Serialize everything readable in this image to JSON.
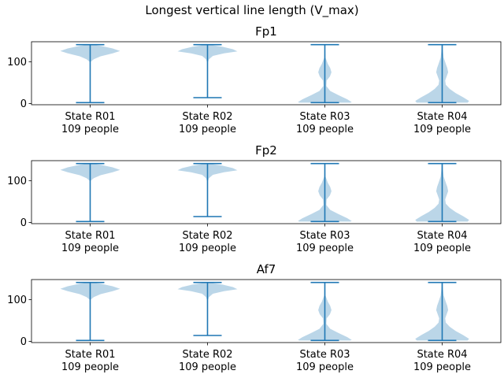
{
  "chart_data": {
    "type": "violin",
    "title": "Longest vertical line length (V_max)",
    "categories": [
      {
        "state": "State R01",
        "people": "109 people"
      },
      {
        "state": "State R02",
        "people": "109 people"
      },
      {
        "state": "State R03",
        "people": "109 people"
      },
      {
        "state": "State R04",
        "people": "109 people"
      }
    ],
    "ylim": [
      -3,
      148
    ],
    "yticks": [
      0,
      100
    ],
    "colors": {
      "body": "#1f77b4",
      "lines": "#1f77b4"
    },
    "panels": [
      {
        "title": "Fp1",
        "violins": [
          {
            "min": 2,
            "max": 141,
            "shape": [
              [
                141,
                0.05
              ],
              [
                138,
                0.35
              ],
              [
                132,
                0.75
              ],
              [
                126,
                1.0
              ],
              [
                120,
                0.75
              ],
              [
                113,
                0.35
              ],
              [
                106,
                0.12
              ],
              [
                100,
                0.02
              ]
            ]
          },
          {
            "min": 14,
            "max": 141,
            "shape": [
              [
                141,
                0.05
              ],
              [
                136,
                0.5
              ],
              [
                130,
                0.85
              ],
              [
                125,
                1.0
              ],
              [
                120,
                0.55
              ],
              [
                114,
                0.18
              ],
              [
                106,
                0.05
              ],
              [
                100,
                0.02
              ]
            ]
          },
          {
            "min": 2,
            "max": 141,
            "shape": [
              [
                141,
                0.01
              ],
              [
                110,
                0.02
              ],
              [
                95,
                0.1
              ],
              [
                85,
                0.18
              ],
              [
                75,
                0.22
              ],
              [
                65,
                0.17
              ],
              [
                55,
                0.06
              ],
              [
                42,
                0.05
              ],
              [
                30,
                0.18
              ],
              [
                20,
                0.45
              ],
              [
                10,
                0.75
              ],
              [
                3,
                0.9
              ],
              [
                2,
                0.85
              ]
            ]
          },
          {
            "min": 2,
            "max": 141,
            "shape": [
              [
                141,
                0.02
              ],
              [
                125,
                0.03
              ],
              [
                110,
                0.05
              ],
              [
                95,
                0.12
              ],
              [
                85,
                0.17
              ],
              [
                75,
                0.2
              ],
              [
                65,
                0.15
              ],
              [
                55,
                0.1
              ],
              [
                45,
                0.12
              ],
              [
                35,
                0.25
              ],
              [
                25,
                0.45
              ],
              [
                15,
                0.7
              ],
              [
                6,
                0.9
              ],
              [
                2,
                0.85
              ]
            ]
          }
        ]
      },
      {
        "title": "Fp2",
        "violins": [
          {
            "min": 2,
            "max": 141,
            "shape": [
              [
                141,
                0.05
              ],
              [
                138,
                0.35
              ],
              [
                132,
                0.75
              ],
              [
                126,
                1.0
              ],
              [
                120,
                0.75
              ],
              [
                113,
                0.35
              ],
              [
                106,
                0.12
              ],
              [
                100,
                0.02
              ]
            ]
          },
          {
            "min": 14,
            "max": 141,
            "shape": [
              [
                141,
                0.05
              ],
              [
                136,
                0.5
              ],
              [
                130,
                0.85
              ],
              [
                125,
                1.0
              ],
              [
                120,
                0.55
              ],
              [
                114,
                0.18
              ],
              [
                106,
                0.05
              ],
              [
                100,
                0.02
              ]
            ]
          },
          {
            "min": 2,
            "max": 141,
            "shape": [
              [
                141,
                0.01
              ],
              [
                110,
                0.02
              ],
              [
                95,
                0.1
              ],
              [
                85,
                0.18
              ],
              [
                75,
                0.22
              ],
              [
                65,
                0.17
              ],
              [
                55,
                0.06
              ],
              [
                42,
                0.05
              ],
              [
                30,
                0.18
              ],
              [
                20,
                0.45
              ],
              [
                10,
                0.75
              ],
              [
                3,
                0.9
              ],
              [
                2,
                0.85
              ]
            ]
          },
          {
            "min": 2,
            "max": 141,
            "shape": [
              [
                141,
                0.02
              ],
              [
                125,
                0.03
              ],
              [
                110,
                0.05
              ],
              [
                95,
                0.12
              ],
              [
                85,
                0.17
              ],
              [
                75,
                0.2
              ],
              [
                65,
                0.15
              ],
              [
                55,
                0.1
              ],
              [
                45,
                0.12
              ],
              [
                35,
                0.25
              ],
              [
                25,
                0.45
              ],
              [
                15,
                0.7
              ],
              [
                6,
                0.9
              ],
              [
                2,
                0.85
              ]
            ]
          }
        ]
      },
      {
        "title": "Af7",
        "violins": [
          {
            "min": 2,
            "max": 141,
            "shape": [
              [
                141,
                0.05
              ],
              [
                138,
                0.35
              ],
              [
                132,
                0.75
              ],
              [
                126,
                1.0
              ],
              [
                120,
                0.75
              ],
              [
                113,
                0.35
              ],
              [
                106,
                0.12
              ],
              [
                100,
                0.02
              ]
            ]
          },
          {
            "min": 14,
            "max": 141,
            "shape": [
              [
                141,
                0.05
              ],
              [
                136,
                0.5
              ],
              [
                130,
                0.85
              ],
              [
                125,
                1.0
              ],
              [
                120,
                0.55
              ],
              [
                114,
                0.18
              ],
              [
                106,
                0.05
              ],
              [
                100,
                0.02
              ]
            ]
          },
          {
            "min": 2,
            "max": 141,
            "shape": [
              [
                141,
                0.01
              ],
              [
                110,
                0.02
              ],
              [
                95,
                0.1
              ],
              [
                85,
                0.18
              ],
              [
                75,
                0.22
              ],
              [
                65,
                0.17
              ],
              [
                55,
                0.06
              ],
              [
                42,
                0.05
              ],
              [
                30,
                0.18
              ],
              [
                20,
                0.45
              ],
              [
                10,
                0.75
              ],
              [
                3,
                0.9
              ],
              [
                2,
                0.85
              ]
            ]
          },
          {
            "min": 2,
            "max": 141,
            "shape": [
              [
                141,
                0.02
              ],
              [
                125,
                0.03
              ],
              [
                110,
                0.05
              ],
              [
                95,
                0.12
              ],
              [
                85,
                0.17
              ],
              [
                75,
                0.2
              ],
              [
                65,
                0.15
              ],
              [
                55,
                0.1
              ],
              [
                45,
                0.12
              ],
              [
                35,
                0.25
              ],
              [
                25,
                0.45
              ],
              [
                15,
                0.7
              ],
              [
                6,
                0.9
              ],
              [
                2,
                0.85
              ]
            ]
          }
        ]
      }
    ]
  }
}
